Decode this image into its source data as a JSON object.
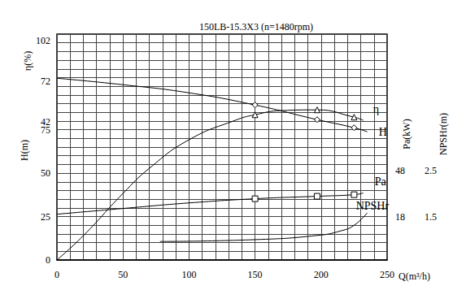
{
  "chart_data": {
    "type": "line",
    "title": "150LB-15.3X3 (n=1480rpm)",
    "x_label": "Q(m³/h)",
    "xlim": [
      0,
      250
    ],
    "xticks": [
      0,
      50,
      100,
      150,
      200,
      250
    ],
    "y_label": "η(%)",
    "ylim": [
      0,
      130
    ],
    "yticks": [
      0,
      25,
      50,
      75
    ],
    "y2_label": "H(m)",
    "y2lim": [
      -60,
      107
    ],
    "y2ticks": [
      42,
      72,
      102
    ],
    "y3_label": "Pa(kW)",
    "y3lim": [
      -10,
      136
    ],
    "y3ticks": [
      18,
      48
    ],
    "y4_label": "NPSHr(m)",
    "y4lim": [
      0.57,
      5.45
    ],
    "y4ticks": [
      1.5,
      2.5
    ],
    "grid": true,
    "series": [
      {
        "name": "η",
        "axis": "y",
        "color": "#000000",
        "marker": "triangle",
        "marker_x": [
          150,
          197,
          225
        ],
        "x": [
          0,
          20,
          50,
          70,
          100,
          135,
          150,
          170,
          197,
          225,
          232
        ],
        "values": [
          0,
          14,
          38.3,
          52.8,
          69.2,
          80.4,
          83.6,
          86,
          86.4,
          82.2,
          80.4
        ]
      },
      {
        "name": "H",
        "axis": "y2",
        "color": "#000000",
        "marker": "diamond",
        "marker_x": [
          150,
          197,
          225
        ],
        "x": [
          0,
          50,
          100,
          150,
          197,
          225,
          235
        ],
        "values": [
          74.4,
          69.6,
          63.6,
          54.6,
          43.8,
          37.8,
          34.8
        ]
      },
      {
        "name": "Pa",
        "axis": "y3",
        "color": "#000000",
        "marker": "rect",
        "marker_x": [
          150,
          197,
          225
        ],
        "x": [
          0,
          50,
          100,
          150,
          197,
          225,
          232
        ],
        "values": [
          19.6,
          23.3,
          26.9,
          29.6,
          31.2,
          32.2,
          33.3
        ]
      },
      {
        "name": "NPSHr",
        "axis": "y4",
        "color": "#000000",
        "x": [
          78,
          150,
          197,
          215,
          225,
          235
        ],
        "values": [
          0.97,
          1.01,
          1.1,
          1.2,
          1.32,
          1.59
        ]
      }
    ]
  }
}
